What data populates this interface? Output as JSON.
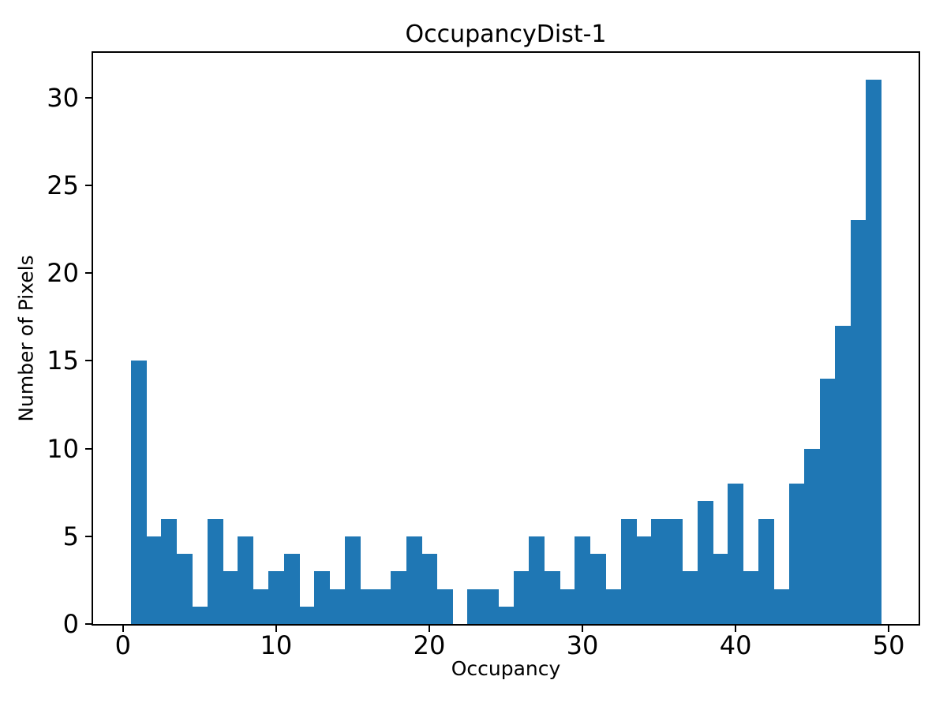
{
  "figure": {
    "title": "OccupancyDist-1",
    "xlabel": "Occupancy",
    "ylabel": "Number of Pixels"
  },
  "chart_data": {
    "type": "bar",
    "subtype": "histogram",
    "title": "OccupancyDist-1",
    "xlabel": "Occupancy",
    "ylabel": "Number of Pixels",
    "bar_color": "#1f77b4",
    "bin_width": 1,
    "bin_centers": [
      1,
      2,
      3,
      4,
      5,
      6,
      7,
      8,
      9,
      10,
      11,
      12,
      13,
      14,
      15,
      16,
      17,
      18,
      19,
      20,
      21,
      22,
      23,
      24,
      25,
      26,
      27,
      28,
      29,
      30,
      31,
      32,
      33,
      34,
      35,
      36,
      37,
      38,
      39,
      40,
      41,
      42,
      43,
      44,
      45,
      46,
      47,
      48,
      49
    ],
    "values": [
      15,
      5,
      6,
      4,
      1,
      6,
      3,
      5,
      2,
      3,
      4,
      1,
      3,
      2,
      5,
      2,
      2,
      3,
      5,
      4,
      2,
      0,
      2,
      2,
      1,
      3,
      5,
      3,
      2,
      5,
      4,
      2,
      6,
      5,
      6,
      6,
      3,
      7,
      4,
      8,
      3,
      6,
      2,
      8,
      10,
      14,
      17,
      23,
      31
    ],
    "xlim": [
      -1.95,
      51.95
    ],
    "ylim": [
      0,
      32.55
    ],
    "xticks": [
      0,
      10,
      20,
      30,
      40,
      50
    ],
    "yticks": [
      0,
      5,
      10,
      15,
      20,
      25,
      30
    ],
    "grid": false,
    "legend": null,
    "axis_color": "#000000",
    "background_color": "#ffffff"
  }
}
